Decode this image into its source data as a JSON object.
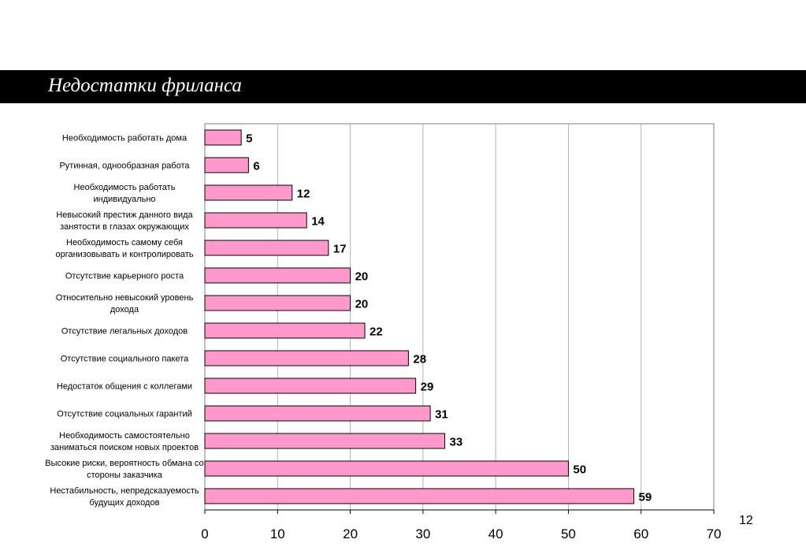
{
  "slide": {
    "title": "Недостатки фриланса",
    "page_number": "12"
  },
  "chart_data": {
    "type": "bar",
    "orientation": "horizontal",
    "title": "",
    "xlabel": "",
    "ylabel": "",
    "xlim": [
      0,
      70
    ],
    "x_ticks": [
      0,
      10,
      20,
      30,
      40,
      50,
      60,
      70
    ],
    "grid": "vertical",
    "bar_color": "#ff99cc",
    "bar_border_color": "#000000",
    "categories": [
      [
        "Необходимость работать дома"
      ],
      [
        "Рутинная, однообразная работа"
      ],
      [
        "Необходимость работать",
        "индивидуально"
      ],
      [
        "Невысокий престиж данного вида",
        "занятости в глазах окружающих"
      ],
      [
        "Необходимость самому себя",
        "организовывать и контролировать"
      ],
      [
        "Отсутствие карьерного роста"
      ],
      [
        "Относительно невысокий уровень",
        "дохода"
      ],
      [
        "Отсутствие легальных доходов"
      ],
      [
        "Отсутствие социального пакета"
      ],
      [
        "Недостаток общения с коллегами"
      ],
      [
        "Отсутствие социальных гарантий"
      ],
      [
        "Необходимость самостоятельно",
        "заниматься поиском новых проектов"
      ],
      [
        "Высокие риски, вероятность обмана со",
        "стороны заказчика"
      ],
      [
        "Нестабильность, непредсказуемость",
        "будущих доходов"
      ]
    ],
    "values": [
      5,
      6,
      12,
      14,
      17,
      20,
      20,
      22,
      28,
      29,
      31,
      33,
      50,
      59
    ]
  }
}
